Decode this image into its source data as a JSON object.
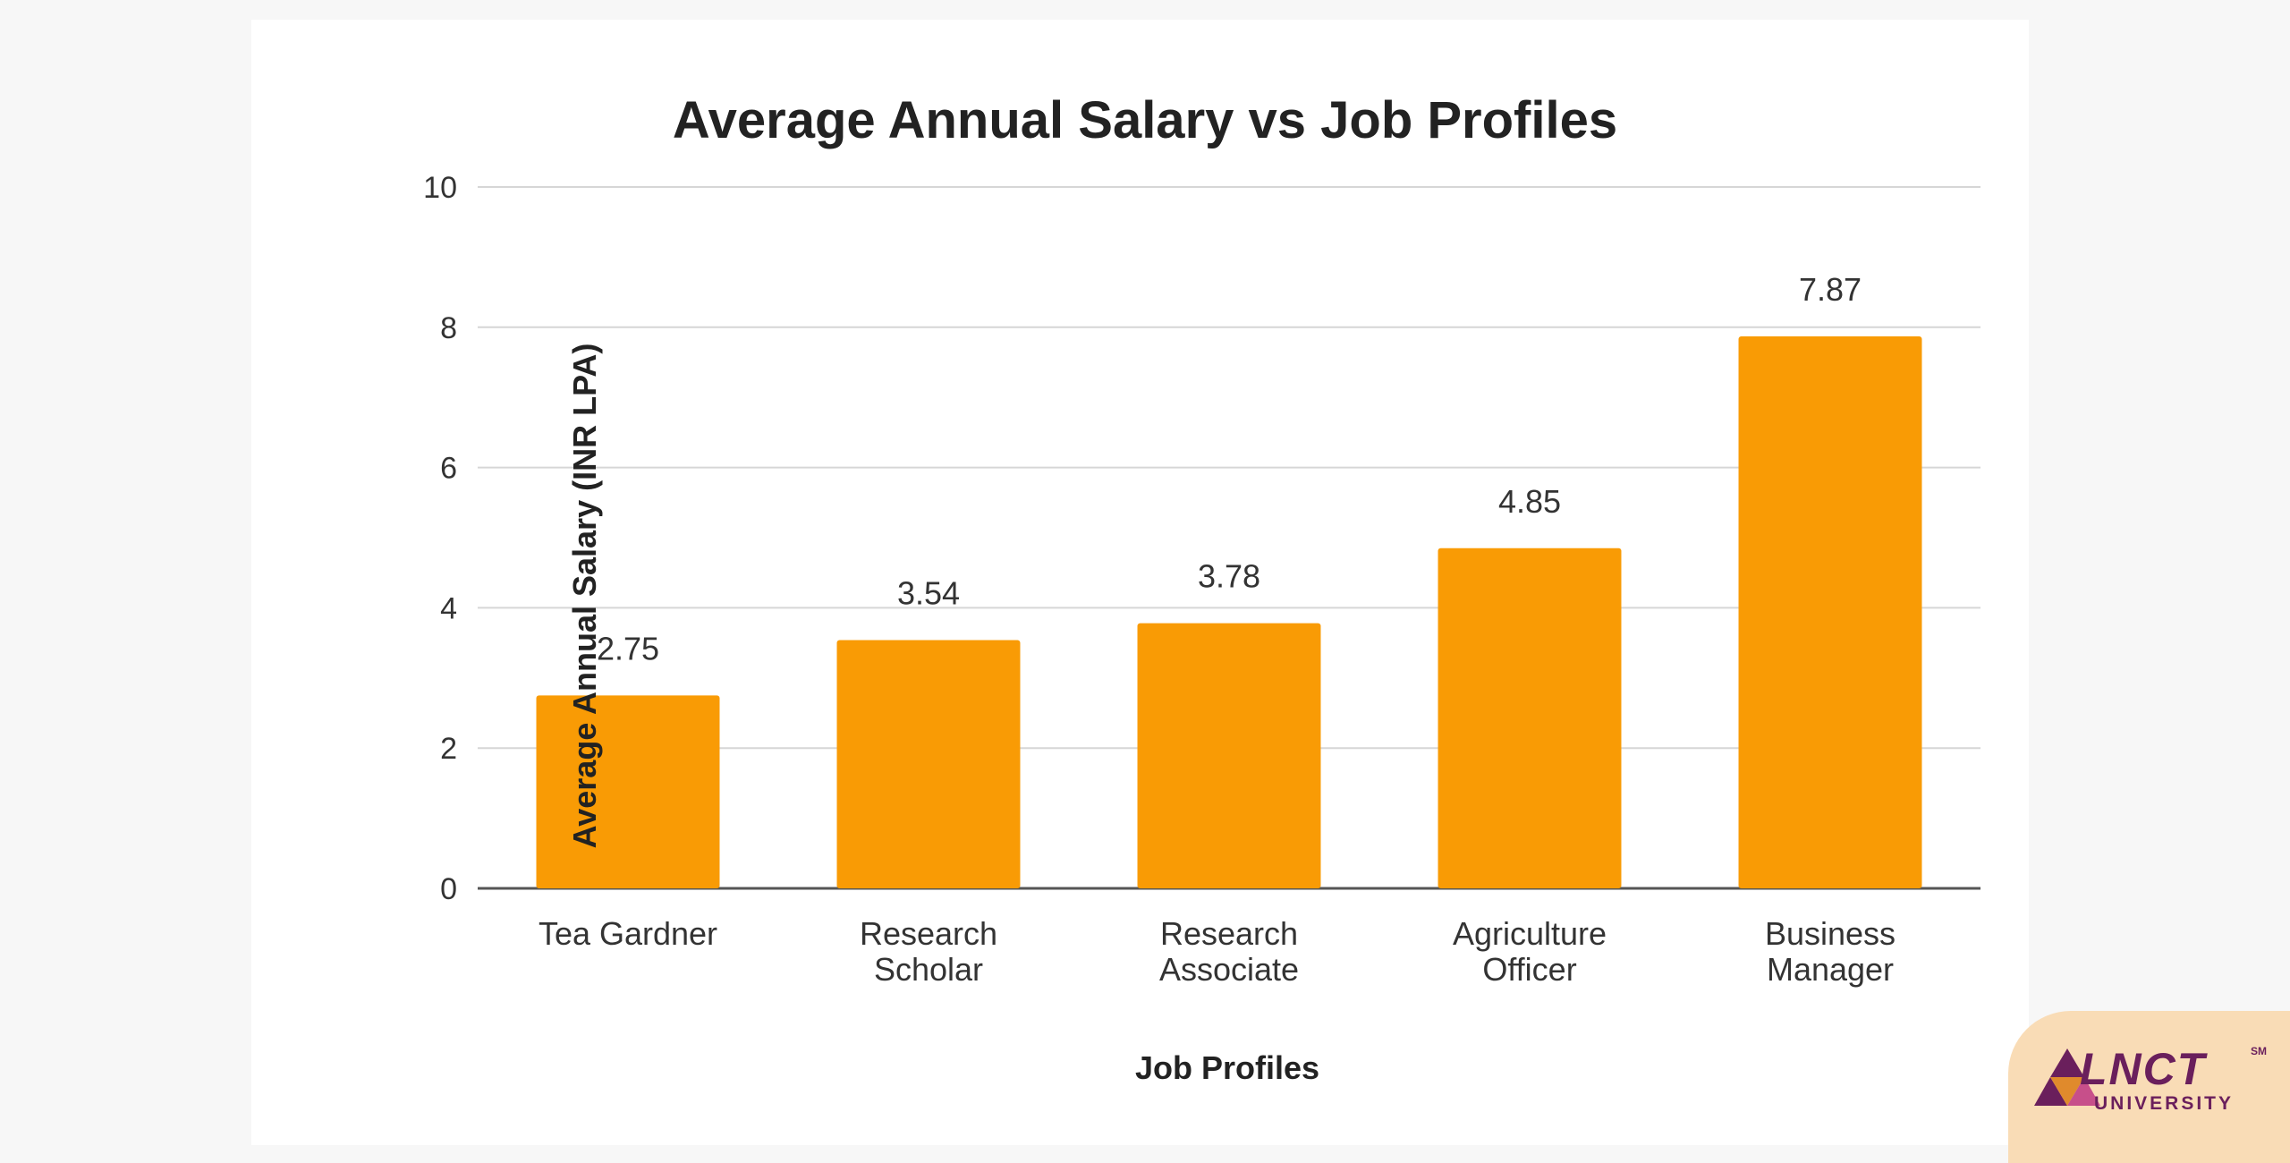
{
  "chart_data": {
    "type": "bar",
    "title": "Average Annual Salary vs Job Profiles",
    "xlabel": "Job Profiles",
    "ylabel": "Average Annual Salary (INR LPA)",
    "categories": [
      [
        "Tea Gardner"
      ],
      [
        "Research",
        "Scholar"
      ],
      [
        "Research",
        "Associate"
      ],
      [
        "Agriculture",
        "Officer"
      ],
      [
        "Business",
        "Manager"
      ]
    ],
    "values": [
      2.75,
      3.54,
      3.78,
      4.85,
      7.87
    ],
    "data_labels": [
      "2.75",
      "3.54",
      "3.78",
      "4.85",
      "7.87"
    ],
    "yticks": [
      "0",
      "2",
      "4",
      "6",
      "8",
      "10"
    ],
    "ylim": [
      0,
      10
    ],
    "grid": true,
    "legend": "none",
    "bar_color": "#f99b05"
  },
  "logo": {
    "text": "LNCT",
    "sub": "UNIVERSITY",
    "mark": "SM",
    "color": "#6a1f5c"
  }
}
